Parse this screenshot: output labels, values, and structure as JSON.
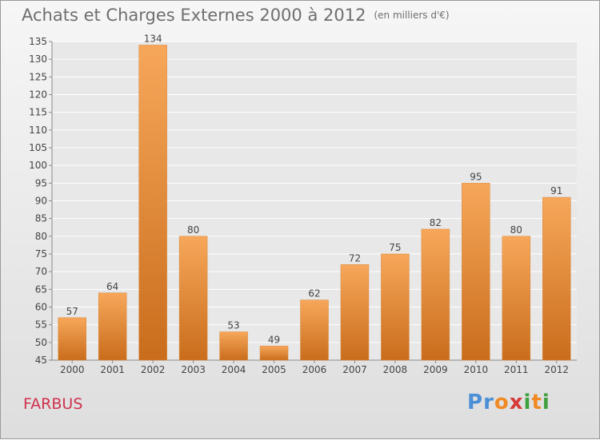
{
  "title": "Achats et Charges Externes 2000 à 2012",
  "unit": "(en milliers d'€)",
  "commune": "FARBUS",
  "logo": {
    "text": "Proxiti",
    "colors": [
      "#4b8fd6",
      "#f08a24",
      "#d63b3b",
      "#3fa03f"
    ]
  },
  "colors": {
    "bar_top": "#f7a75a",
    "bar_bottom": "#c96d1c",
    "title": "#6e6e6e",
    "commune": "#d0314e"
  },
  "chart_data": {
    "type": "bar",
    "categories": [
      "2000",
      "2001",
      "2002",
      "2003",
      "2004",
      "2005",
      "2006",
      "2007",
      "2008",
      "2009",
      "2010",
      "2011",
      "2012"
    ],
    "values": [
      57,
      64,
      134,
      80,
      53,
      49,
      62,
      72,
      75,
      82,
      95,
      80,
      91
    ],
    "ylim": [
      45,
      135
    ],
    "yticks": [
      45,
      50,
      55,
      60,
      65,
      70,
      75,
      80,
      85,
      90,
      95,
      100,
      105,
      110,
      115,
      120,
      125,
      130,
      135
    ],
    "grid": true
  }
}
